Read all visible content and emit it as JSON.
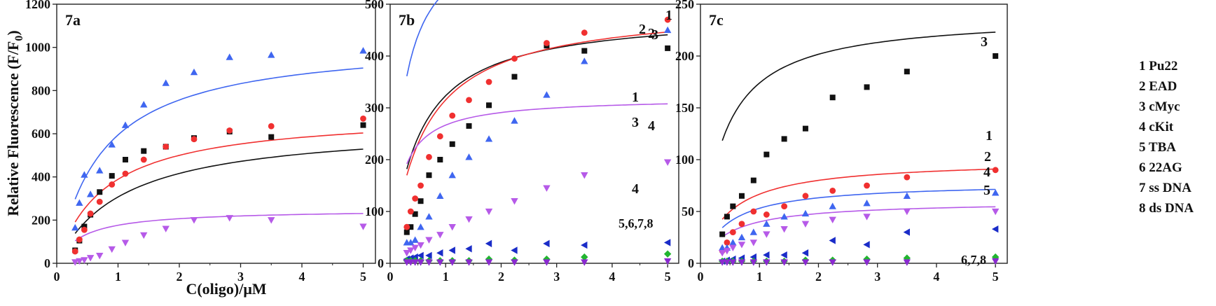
{
  "figure": {
    "ylabel": "Relative Fluorescence (F/F",
    "ylabel_sub": "0",
    "ylabel_end": ")",
    "xlabel": "C(oligo)/μM"
  },
  "legend": [
    {
      "num": "1",
      "name": "Pu22"
    },
    {
      "num": "2",
      "name": "EAD"
    },
    {
      "num": "3",
      "name": "cMyc"
    },
    {
      "num": "4",
      "name": "cKit"
    },
    {
      "num": "5",
      "name": "TBA"
    },
    {
      "num": "6",
      "name": "22AG"
    },
    {
      "num": "7",
      "name": "ss DNA"
    },
    {
      "num": "8",
      "name": "ds DNA"
    }
  ],
  "colors": {
    "black": "#111111",
    "red": "#f03030",
    "blue": "#3f66f0",
    "magenta": "#b65ae8",
    "navy": "#1a2cc8",
    "green": "#22b530",
    "purple": "#8a2ad0",
    "axis": "#222222"
  },
  "chart_data": [
    {
      "type": "scatter",
      "panel_label": "7a",
      "xlim": [
        0,
        5.2
      ],
      "ylim": [
        0,
        1200
      ],
      "x_ticks": [
        0,
        1,
        2,
        3,
        4,
        5
      ],
      "y_ticks": [
        0,
        200,
        400,
        600,
        800,
        1000,
        1200
      ],
      "x": [
        0.3,
        0.37,
        0.45,
        0.55,
        0.7,
        0.9,
        1.12,
        1.42,
        1.78,
        2.24,
        2.82,
        3.5,
        5.0
      ],
      "series": [
        {
          "id": "cMyc",
          "label": "3",
          "color": "black",
          "marker": "square",
          "values": [
            60,
            105,
            170,
            225,
            330,
            405,
            480,
            520,
            540,
            580,
            610,
            585,
            640
          ],
          "fit": {
            "a": 645,
            "k": 1.1
          }
        },
        {
          "id": "EAD",
          "label": "2",
          "color": "blue",
          "marker": "triangle-up",
          "values": [
            165,
            280,
            410,
            320,
            430,
            550,
            640,
            735,
            835,
            885,
            955,
            965,
            985
          ],
          "fit": {
            "a": 1040,
            "k": 0.75
          }
        },
        {
          "id": "Pu22",
          "label": "1",
          "color": "red",
          "marker": "circle",
          "values": [
            55,
            110,
            155,
            230,
            285,
            365,
            415,
            480,
            540,
            575,
            615,
            635,
            670
          ],
          "fit": {
            "a": 700,
            "k": 0.8
          }
        },
        {
          "id": "cKit",
          "label": "4",
          "color": "magenta",
          "marker": "triangle-down",
          "values": [
            5,
            10,
            15,
            25,
            35,
            65,
            95,
            130,
            160,
            200,
            210,
            200,
            170
          ],
          "fit": {
            "a": 250,
            "k": 0.42
          }
        }
      ]
    },
    {
      "type": "scatter",
      "panel_label": "7b",
      "xlim": [
        0,
        5.2
      ],
      "ylim": [
        0,
        500
      ],
      "x_ticks": [
        0,
        1,
        2,
        3,
        4,
        5
      ],
      "y_ticks": [
        0,
        100,
        200,
        300,
        400,
        500
      ],
      "annotation": "5,6,7,8",
      "x": [
        0.3,
        0.37,
        0.45,
        0.55,
        0.7,
        0.9,
        1.12,
        1.42,
        1.78,
        2.24,
        2.82,
        3.5,
        5.0
      ],
      "series": [
        {
          "id": "cMyc",
          "label": "3",
          "color": "black",
          "marker": "square",
          "values": [
            60,
            70,
            95,
            120,
            170,
            200,
            230,
            265,
            305,
            360,
            420,
            410,
            415
          ],
          "fit": {
            "a": 485,
            "k": 0.5
          }
        },
        {
          "id": "Pu22",
          "label": "1",
          "color": "red",
          "marker": "circle",
          "values": [
            70,
            100,
            125,
            150,
            205,
            245,
            285,
            315,
            350,
            395,
            425,
            445,
            470
          ],
          "fit": {
            "a": 498,
            "k": 0.58
          }
        },
        {
          "id": "EAD",
          "label": "2",
          "color": "blue",
          "marker": "triangle-up",
          "values": [
            40,
            40,
            45,
            70,
            90,
            130,
            170,
            205,
            240,
            275,
            325,
            390,
            450
          ],
          "fit": {
            "a": 650,
            "k": 0.24
          }
        },
        {
          "id": "cKit",
          "label": "4",
          "color": "magenta",
          "marker": "triangle-down",
          "values": [
            20,
            25,
            30,
            35,
            45,
            55,
            70,
            85,
            100,
            120,
            145,
            170,
            195
          ],
          "fit": {
            "a": 320,
            "k": 0.2
          }
        },
        {
          "id": "TBA",
          "label": "5",
          "color": "navy",
          "marker": "triangle-left",
          "values": [
            8,
            10,
            12,
            15,
            15,
            20,
            25,
            28,
            38,
            25,
            38,
            35,
            40
          ]
        },
        {
          "id": "22AG",
          "label": "6",
          "color": "green",
          "marker": "diamond",
          "values": [
            5,
            5,
            5,
            5,
            5,
            5,
            5,
            5,
            8,
            6,
            8,
            12,
            18
          ]
        },
        {
          "id": "ssDNA",
          "label": "7",
          "color": "purple",
          "marker": "triangle-down",
          "values": [
            2,
            2,
            2,
            2,
            2,
            2,
            2,
            2,
            2,
            2,
            2,
            2,
            4
          ]
        }
      ]
    },
    {
      "type": "scatter",
      "panel_label": "7c",
      "xlim": [
        0,
        5.2
      ],
      "ylim": [
        0,
        250
      ],
      "x_ticks": [
        0,
        1,
        2,
        3,
        4,
        5
      ],
      "y_ticks": [
        0,
        50,
        100,
        150,
        200,
        250
      ],
      "annotation": "6,7,8",
      "x": [
        0.37,
        0.45,
        0.55,
        0.7,
        0.9,
        1.12,
        1.42,
        1.78,
        2.24,
        2.82,
        3.5,
        5.0
      ],
      "series": [
        {
          "id": "cMyc",
          "label": "3",
          "color": "black",
          "marker": "square",
          "values": [
            28,
            45,
            55,
            65,
            80,
            105,
            120,
            130,
            160,
            170,
            185,
            200
          ],
          "fit": {
            "a": 240,
            "k": 0.38
          }
        },
        {
          "id": "Pu22",
          "label": "1",
          "color": "red",
          "marker": "circle",
          "values": [
            12,
            20,
            30,
            38,
            50,
            47,
            55,
            65,
            70,
            75,
            83,
            90
          ],
          "fit": {
            "a": 100,
            "k": 0.5
          }
        },
        {
          "id": "EAD",
          "label": "2",
          "color": "blue",
          "marker": "triangle-up",
          "values": [
            15,
            15,
            20,
            25,
            30,
            38,
            45,
            48,
            55,
            58,
            65,
            68
          ],
          "fit": {
            "a": 78,
            "k": 0.47
          }
        },
        {
          "id": "cKit",
          "label": "4",
          "color": "magenta",
          "marker": "triangle-down",
          "values": [
            10,
            12,
            15,
            18,
            20,
            28,
            33,
            38,
            42,
            45,
            50,
            50
          ],
          "fit": {
            "a": 60,
            "k": 0.5
          }
        },
        {
          "id": "TBA",
          "label": "5",
          "color": "navy",
          "marker": "triangle-left",
          "values": [
            2,
            3,
            4,
            5,
            6,
            8,
            8,
            10,
            22,
            18,
            30,
            33
          ]
        },
        {
          "id": "22AG",
          "label": "6",
          "color": "green",
          "marker": "diamond",
          "values": [
            2,
            2,
            2,
            2,
            2,
            2,
            2,
            3,
            3,
            4,
            5,
            6
          ]
        },
        {
          "id": "ssDNA",
          "label": "7",
          "color": "purple",
          "marker": "triangle-down",
          "values": [
            1,
            1,
            1,
            1,
            1,
            1,
            1,
            1,
            1,
            1,
            1,
            2
          ]
        }
      ]
    }
  ]
}
